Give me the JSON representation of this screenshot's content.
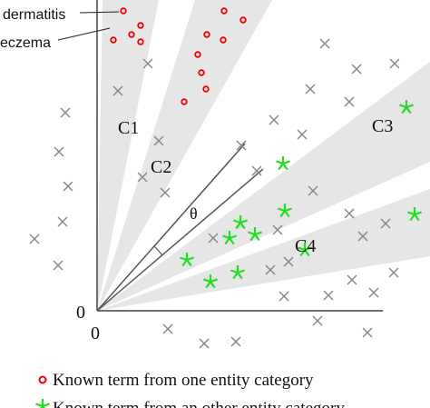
{
  "labels": {
    "term_a": "dermatitis",
    "term_b": "eczema"
  },
  "clusters": [
    "C1",
    "C2",
    "C3",
    "C4"
  ],
  "angle": "θ",
  "origin_y": "0",
  "origin_x": "0",
  "legend": [
    "Known term from one entity category",
    "Known term from an other entity category"
  ]
}
